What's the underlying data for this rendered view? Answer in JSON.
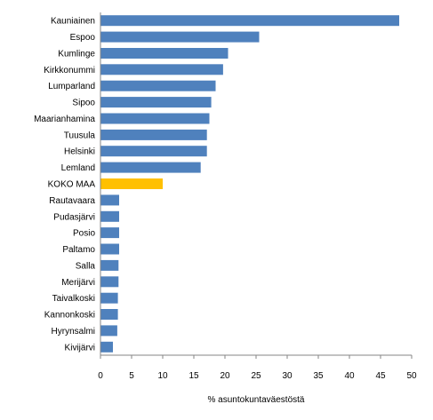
{
  "chart_data": {
    "type": "bar",
    "orientation": "horizontal",
    "categories": [
      "Kauniainen",
      "Espoo",
      "Kumlinge",
      "Kirkkonummi",
      "Lumparland",
      "Sipoo",
      "Maarianhamina",
      "Tuusula",
      "Helsinki",
      "Lemland",
      "KOKO MAA",
      "Rautavaara",
      "Pudasjärvi",
      "Posio",
      "Paltamo",
      "Salla",
      "Merijärvi",
      "Taivalkoski",
      "Kannonkoski",
      "Hyrynsalmi",
      "Kivijärvi"
    ],
    "values": [
      48.0,
      25.5,
      20.5,
      19.7,
      18.5,
      17.8,
      17.5,
      17.1,
      17.1,
      16.1,
      10.0,
      3.0,
      3.0,
      3.0,
      3.0,
      2.9,
      2.9,
      2.8,
      2.8,
      2.7,
      2.0
    ],
    "xlabel": "% asuntokuntaväestöstä",
    "xlim": [
      0,
      50
    ],
    "xticks": [
      0,
      5,
      10,
      15,
      20,
      25,
      30,
      35,
      40,
      45,
      50
    ],
    "grid": false,
    "legend": "none",
    "colors": {
      "default": "#4F81BD",
      "highlight": "#FFC000"
    },
    "highlight_category": "KOKO MAA"
  }
}
